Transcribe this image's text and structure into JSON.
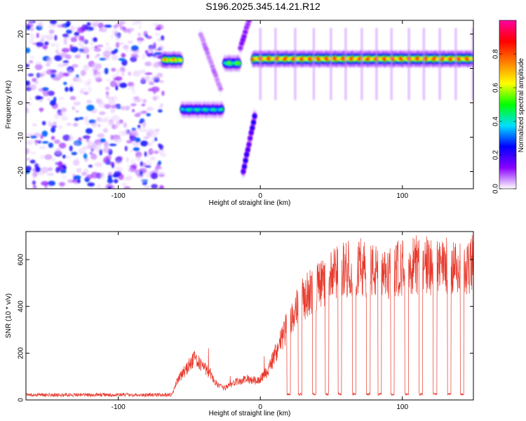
{
  "title": "S196.2025.345.14.21.R12",
  "chart_data": [
    {
      "type": "heatmap",
      "xlabel": "Height of straight line (km)",
      "ylabel": "Frequency (Hz)",
      "xlim": [
        -165,
        150
      ],
      "ylim": [
        -25,
        24
      ],
      "x_ticks": [
        -100,
        0,
        100
      ],
      "y_ticks": [
        -20,
        -10,
        0,
        10,
        20
      ],
      "colorbar": {
        "label": "Normalized spectral amplitude",
        "range": [
          0,
          1
        ],
        "ticks": [
          0,
          0.2,
          0.4,
          0.6,
          0.8
        ],
        "colormap": [
          "#ffffff",
          "#8a00ff",
          "#0000ff",
          "#00e0ff",
          "#00ff00",
          "#ffff00",
          "#ff8000",
          "#ff0000",
          "#ff00a0"
        ]
      },
      "noise_region": {
        "x": [
          -165,
          -68
        ],
        "y": [
          -25,
          24
        ],
        "amplitude_range": [
          0.02,
          0.2
        ]
      },
      "features": [
        {
          "name": "tone",
          "x": [
            -68,
            -56
          ],
          "y": 12.5,
          "amplitude": 0.75
        },
        {
          "name": "tone",
          "x": [
            -55,
            -27
          ],
          "y": -2,
          "amplitude": 0.45
        },
        {
          "name": "tone",
          "x": [
            -25,
            -15
          ],
          "y": 11.5,
          "amplitude": 0.55
        },
        {
          "name": "chirp",
          "x": [
            -12,
            -4
          ],
          "y": [
            -20,
            -4
          ],
          "amplitude": 0.25
        },
        {
          "name": "tone",
          "x": [
            -5,
            150
          ],
          "y": 12.8,
          "amplitude": 0.85
        },
        {
          "name": "chirp",
          "x": [
            -42,
            -28
          ],
          "y": [
            20,
            4
          ],
          "amplitude": 0.08
        },
        {
          "name": "chirp",
          "x": [
            -14,
            -8
          ],
          "y": [
            16,
            24
          ],
          "amplitude": 0.15
        }
      ]
    },
    {
      "type": "line",
      "xlabel": "Height of straight line (km)",
      "ylabel": "SNR (10 * v/v)",
      "xlim": [
        -165,
        150
      ],
      "ylim": [
        0,
        720
      ],
      "x_ticks": [
        -100,
        0,
        100
      ],
      "y_ticks": [
        0,
        200,
        400,
        600
      ],
      "color": "#e8392c",
      "envelope": [
        {
          "x": -165,
          "y": 22
        },
        {
          "x": -62,
          "y": 22
        },
        {
          "x": -58,
          "y": 90
        },
        {
          "x": -50,
          "y": 150
        },
        {
          "x": -45,
          "y": 180
        },
        {
          "x": -40,
          "y": 140
        },
        {
          "x": -35,
          "y": 110
        },
        {
          "x": -30,
          "y": 60
        },
        {
          "x": -25,
          "y": 50
        },
        {
          "x": -20,
          "y": 70
        },
        {
          "x": -10,
          "y": 90
        },
        {
          "x": -2,
          "y": 80
        },
        {
          "x": 5,
          "y": 120
        },
        {
          "x": 10,
          "y": 190
        },
        {
          "x": 15,
          "y": 260
        },
        {
          "x": 20,
          "y": 330
        },
        {
          "x": 25,
          "y": 390
        },
        {
          "x": 30,
          "y": 430
        },
        {
          "x": 35,
          "y": 460
        },
        {
          "x": 40,
          "y": 490
        },
        {
          "x": 45,
          "y": 510
        },
        {
          "x": 50,
          "y": 530
        },
        {
          "x": 60,
          "y": 560
        },
        {
          "x": 70,
          "y": 570
        },
        {
          "x": 80,
          "y": 550
        },
        {
          "x": 88,
          "y": 520
        },
        {
          "x": 95,
          "y": 560
        },
        {
          "x": 105,
          "y": 580
        },
        {
          "x": 115,
          "y": 560
        },
        {
          "x": 125,
          "y": 580
        },
        {
          "x": 135,
          "y": 570
        },
        {
          "x": 145,
          "y": 560
        },
        {
          "x": 150,
          "y": 590
        }
      ],
      "dropouts_x": [
        20,
        28,
        38,
        47,
        56,
        66,
        76,
        84,
        93,
        103,
        113,
        123,
        133,
        142
      ],
      "dropout_value": 25
    }
  ]
}
